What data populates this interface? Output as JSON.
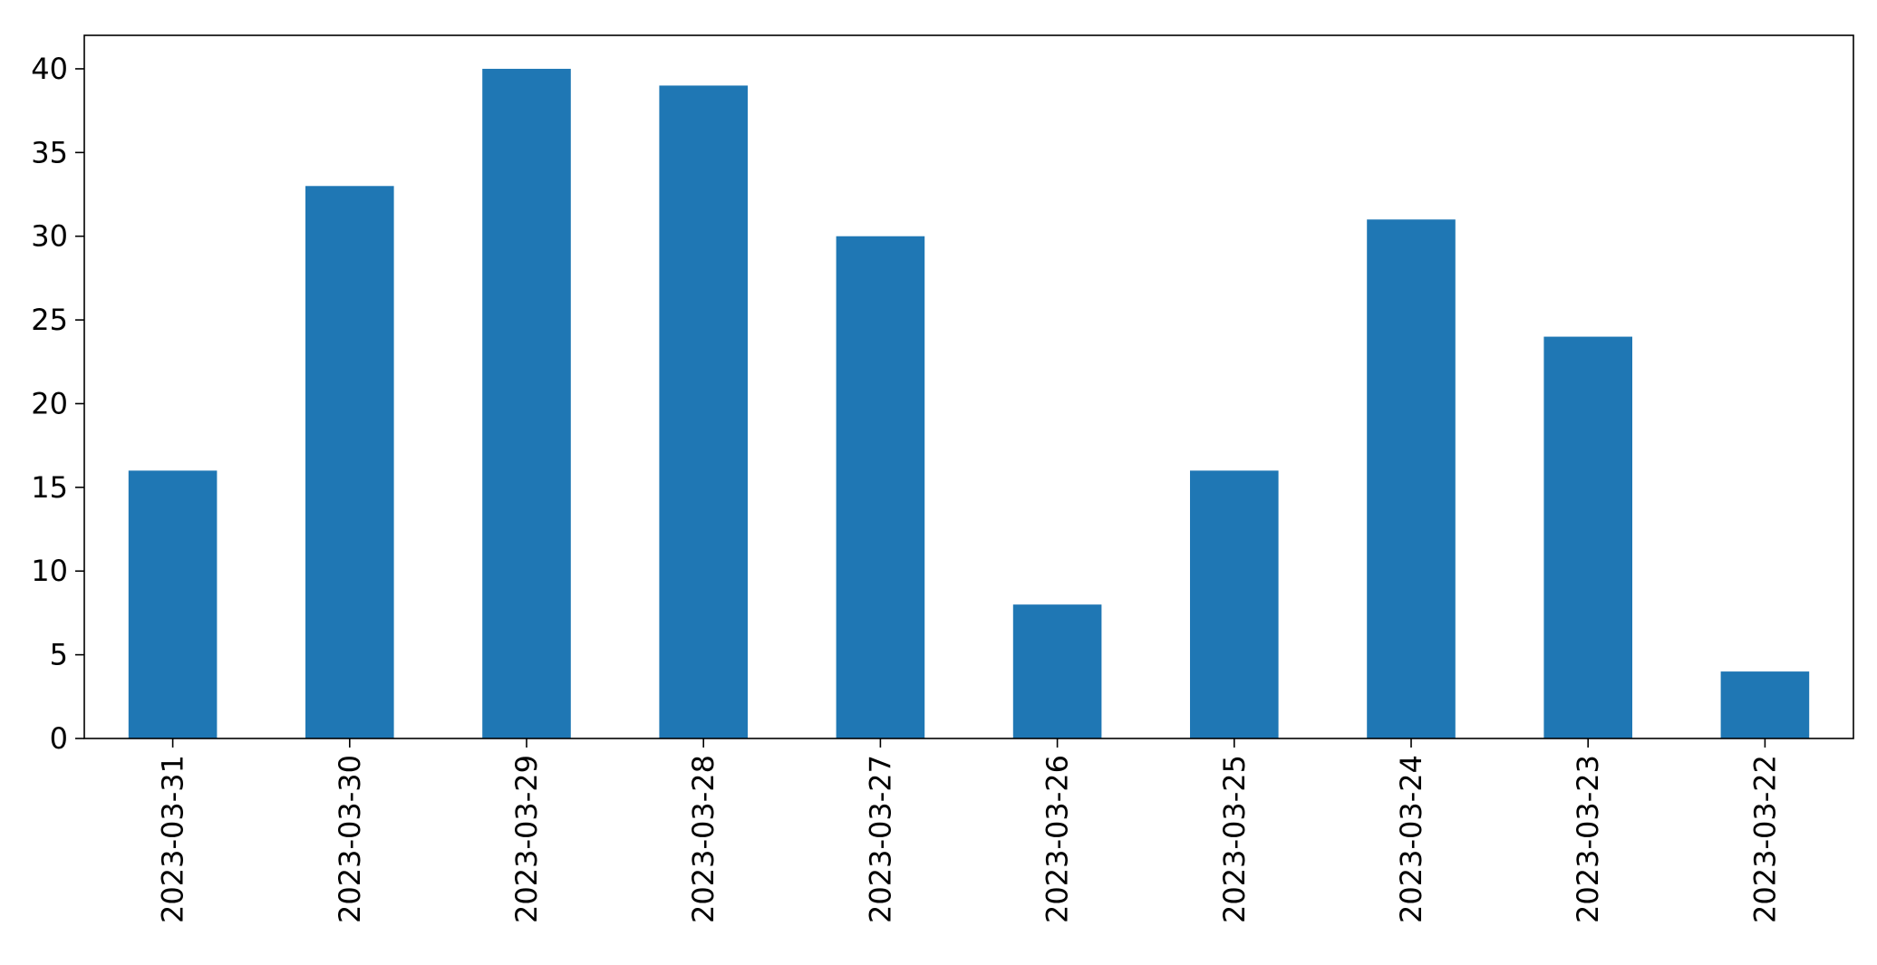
{
  "chart_data": {
    "type": "bar",
    "categories": [
      "2023-03-31",
      "2023-03-30",
      "2023-03-29",
      "2023-03-28",
      "2023-03-27",
      "2023-03-26",
      "2023-03-25",
      "2023-03-24",
      "2023-03-23",
      "2023-03-22"
    ],
    "values": [
      16,
      33,
      40,
      39,
      30,
      8,
      16,
      31,
      24,
      4
    ],
    "title": "",
    "xlabel": "",
    "ylabel": "",
    "ylim": [
      0,
      42
    ],
    "yticks": [
      0,
      5,
      10,
      15,
      20,
      25,
      30,
      35,
      40
    ],
    "grid": false,
    "legend": "none",
    "bar_color": "#1f77b4"
  }
}
